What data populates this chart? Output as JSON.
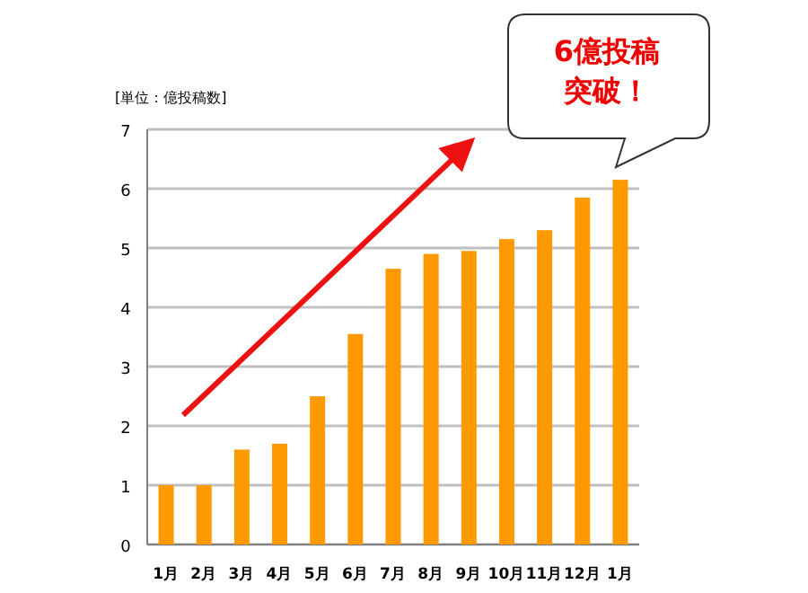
{
  "chart_data": {
    "type": "bar",
    "ylabel": "[単位：億投稿数]",
    "categories": [
      "1月",
      "2月",
      "3月",
      "4月",
      "5月",
      "6月",
      "7月",
      "8月",
      "9月",
      "10月",
      "11月",
      "12月",
      "1月"
    ],
    "values": [
      1.0,
      1.0,
      1.6,
      1.7,
      2.5,
      3.55,
      4.65,
      4.9,
      4.95,
      5.15,
      5.3,
      5.85,
      6.15
    ],
    "color": "#ff9900",
    "ylim": [
      0,
      7
    ],
    "yticks": [
      0,
      1,
      2,
      3,
      4,
      5,
      6,
      7
    ],
    "grid": "y",
    "annotations": [
      "6億投稿",
      "突破！"
    ]
  }
}
